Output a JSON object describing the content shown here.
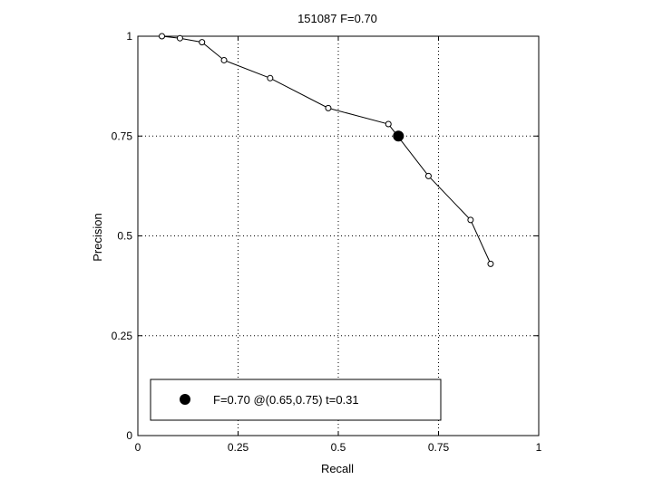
{
  "chart_data": {
    "type": "line",
    "title": "151087 F=0.70",
    "xlabel": "Recall",
    "ylabel": "Precision",
    "xlim": [
      0,
      1
    ],
    "ylim": [
      0,
      1
    ],
    "grid": true,
    "legend_position": "bottom-left",
    "x_ticks": [
      "0",
      "0.25",
      "0.5",
      "0.75",
      "1"
    ],
    "y_ticks": [
      "0",
      "0.25",
      "0.5",
      "0.75",
      "1"
    ],
    "series": [
      {
        "x": [
          0.06,
          0.105,
          0.16,
          0.215,
          0.33,
          0.475,
          0.625,
          0.725,
          0.83,
          0.88
        ],
        "y": [
          1.0,
          0.995,
          0.985,
          0.94,
          0.895,
          0.82,
          0.78,
          0.65,
          0.54,
          0.43
        ],
        "marker": "open-circle",
        "color": "#000000"
      }
    ],
    "best_point": {
      "x": 0.65,
      "y": 0.75,
      "marker": "filled-circle",
      "color": "#000000",
      "legend_label": "F=0.70 @(0.65,0.75) t=0.31"
    }
  }
}
